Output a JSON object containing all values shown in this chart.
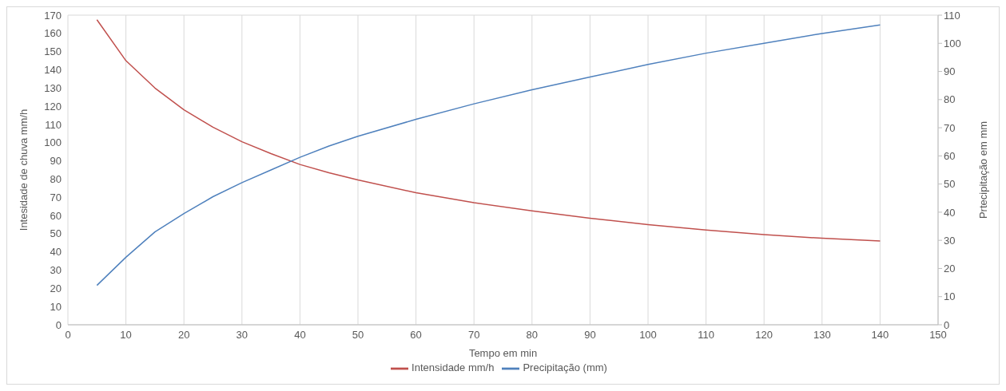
{
  "chart_data": {
    "type": "line",
    "xlabel": "Tempo em min",
    "ylabel": "Intesidade de chuva mm/h",
    "y2label": "Prtecipitação em mm",
    "x": [
      5,
      10,
      15,
      20,
      25,
      30,
      35,
      40,
      45,
      50,
      60,
      70,
      80,
      90,
      100,
      110,
      120,
      130,
      140
    ],
    "series": [
      {
        "name": "Intensidade mm/h",
        "color": "#c0504d",
        "values": [
          167.5,
          145,
          130,
          118,
          108.5,
          100.5,
          94,
          88,
          83.5,
          79.5,
          72.5,
          67,
          62.5,
          58.5,
          55,
          52,
          49.5,
          47.5,
          46
        ]
      },
      {
        "name": "Precipitação (mm)",
        "color": "#4f81bd",
        "axis": "y2",
        "values": [
          14,
          24,
          33,
          39.5,
          45.5,
          50.5,
          55,
          59.5,
          63.5,
          67,
          73,
          78.5,
          83.5,
          88,
          92.5,
          96.5,
          100,
          103.5,
          106.5
        ]
      }
    ],
    "xlim": [
      0,
      150
    ],
    "xticks": [
      0,
      10,
      20,
      30,
      40,
      50,
      60,
      70,
      80,
      90,
      100,
      110,
      120,
      130,
      140,
      150
    ],
    "ylim": [
      0,
      170
    ],
    "yticks": [
      0,
      10,
      20,
      30,
      40,
      50,
      60,
      70,
      80,
      90,
      100,
      110,
      120,
      130,
      140,
      150,
      160,
      170
    ],
    "y2lim": [
      0,
      110
    ],
    "y2ticks": [
      0,
      10,
      20,
      30,
      40,
      50,
      60,
      70,
      80,
      90,
      100,
      110
    ],
    "grid": true,
    "legend": "bottom",
    "marker": "none",
    "line_style": "solid"
  }
}
